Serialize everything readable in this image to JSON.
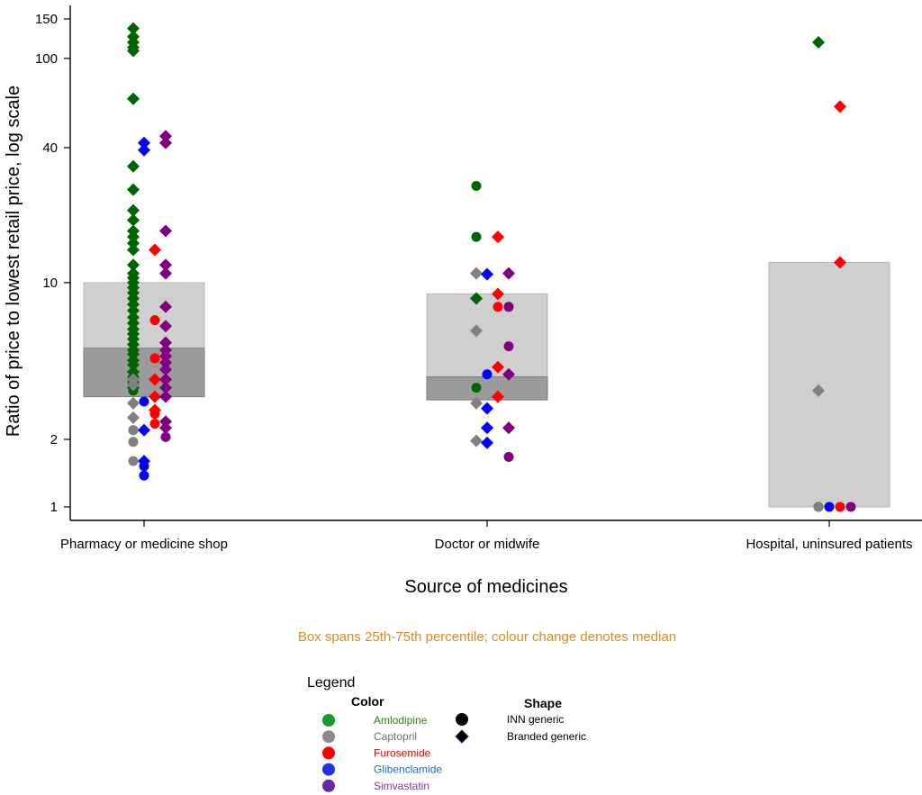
{
  "chart_data": {
    "type": "scatter",
    "subtype": "jittered strip plot with interquartile boxes",
    "y_scale": "log",
    "ylabel": "Ratio of price to lowest retail price, log scale",
    "xlabel": "Source of medicines",
    "yticks": [
      1,
      2,
      10,
      40,
      100,
      150
    ],
    "ylim": [
      0.86,
      200
    ],
    "note": "Box spans 25th-75th percentile; colour change denotes median",
    "categories": [
      "Pharmacy or medicine shop",
      "Doctor or midwife",
      "Hospital, uninsured patients"
    ],
    "boxes": [
      {
        "category": "Pharmacy or medicine shop",
        "q1": 3.1,
        "median": 5.1,
        "q3": 10.0
      },
      {
        "category": "Doctor or midwife",
        "q1": 3.0,
        "median": 3.8,
        "q3": 8.9
      },
      {
        "category": "Hospital, uninsured patients",
        "q1": 1.0,
        "median": 1.0,
        "q3": 12.3
      }
    ],
    "legend": {
      "title": "Legend",
      "color_heading": "Color",
      "shape_heading": "Shape",
      "colors": [
        {
          "name": "Amlodipine",
          "marker": "#119933",
          "text": "#3a7a1a"
        },
        {
          "name": "Captopril",
          "marker": "#8a8a8a",
          "text": "#707070"
        },
        {
          "name": "Furosemide",
          "marker": "#ff0000",
          "text": "#e00000"
        },
        {
          "name": "Glibenclamide",
          "marker": "#2233dd",
          "text": "#1a6ec8"
        },
        {
          "name": "Simvastatin",
          "marker": "#6a2a9a",
          "text": "#7a3aaa"
        }
      ],
      "shapes": [
        {
          "name": "INN generic",
          "shape": "circle"
        },
        {
          "name": "Branded generic",
          "shape": "diamond"
        }
      ]
    },
    "series": [
      {
        "name": "Amlodipine",
        "color": "#006400",
        "points": [
          {
            "x": "Pharmacy or medicine shop",
            "jitter": -0.02,
            "y": 136,
            "shape": "diamond"
          },
          {
            "x": "Pharmacy or medicine shop",
            "jitter": -0.02,
            "y": 125,
            "shape": "diamond"
          },
          {
            "x": "Pharmacy or medicine shop",
            "jitter": -0.02,
            "y": 118,
            "shape": "diamond"
          },
          {
            "x": "Pharmacy or medicine shop",
            "jitter": -0.02,
            "y": 112,
            "shape": "diamond"
          },
          {
            "x": "Pharmacy or medicine shop",
            "jitter": -0.02,
            "y": 108,
            "shape": "diamond"
          },
          {
            "x": "Pharmacy or medicine shop",
            "jitter": -0.02,
            "y": 66,
            "shape": "diamond"
          },
          {
            "x": "Pharmacy or medicine shop",
            "jitter": -0.02,
            "y": 33,
            "shape": "diamond"
          },
          {
            "x": "Pharmacy or medicine shop",
            "jitter": -0.02,
            "y": 26,
            "shape": "diamond"
          },
          {
            "x": "Pharmacy or medicine shop",
            "jitter": -0.02,
            "y": 21,
            "shape": "diamond"
          },
          {
            "x": "Pharmacy or medicine shop",
            "jitter": -0.02,
            "y": 19,
            "shape": "diamond"
          },
          {
            "x": "Pharmacy or medicine shop",
            "jitter": -0.02,
            "y": 17,
            "shape": "diamond"
          },
          {
            "x": "Pharmacy or medicine shop",
            "jitter": -0.02,
            "y": 16,
            "shape": "diamond"
          },
          {
            "x": "Pharmacy or medicine shop",
            "jitter": -0.02,
            "y": 15,
            "shape": "diamond"
          },
          {
            "x": "Pharmacy or medicine shop",
            "jitter": -0.02,
            "y": 14,
            "shape": "diamond"
          },
          {
            "x": "Pharmacy or medicine shop",
            "jitter": -0.02,
            "y": 12,
            "shape": "diamond"
          },
          {
            "x": "Pharmacy or medicine shop",
            "jitter": -0.02,
            "y": 11,
            "shape": "diamond"
          },
          {
            "x": "Pharmacy or medicine shop",
            "jitter": -0.02,
            "y": 10.5,
            "shape": "diamond"
          },
          {
            "x": "Pharmacy or medicine shop",
            "jitter": -0.02,
            "y": 10,
            "shape": "diamond"
          },
          {
            "x": "Pharmacy or medicine shop",
            "jitter": -0.02,
            "y": 9.5,
            "shape": "diamond"
          },
          {
            "x": "Pharmacy or medicine shop",
            "jitter": -0.02,
            "y": 9,
            "shape": "diamond"
          },
          {
            "x": "Pharmacy or medicine shop",
            "jitter": -0.02,
            "y": 8.5,
            "shape": "diamond"
          },
          {
            "x": "Pharmacy or medicine shop",
            "jitter": -0.02,
            "y": 8,
            "shape": "diamond"
          },
          {
            "x": "Pharmacy or medicine shop",
            "jitter": -0.02,
            "y": 7.5,
            "shape": "diamond"
          },
          {
            "x": "Pharmacy or medicine shop",
            "jitter": -0.02,
            "y": 7,
            "shape": "diamond"
          },
          {
            "x": "Pharmacy or medicine shop",
            "jitter": -0.02,
            "y": 6.6,
            "shape": "diamond"
          },
          {
            "x": "Pharmacy or medicine shop",
            "jitter": -0.02,
            "y": 6.2,
            "shape": "diamond"
          },
          {
            "x": "Pharmacy or medicine shop",
            "jitter": -0.02,
            "y": 5.9,
            "shape": "diamond"
          },
          {
            "x": "Pharmacy or medicine shop",
            "jitter": -0.02,
            "y": 5.6,
            "shape": "diamond"
          },
          {
            "x": "Pharmacy or medicine shop",
            "jitter": -0.02,
            "y": 5.3,
            "shape": "diamond"
          },
          {
            "x": "Pharmacy or medicine shop",
            "jitter": -0.02,
            "y": 5.0,
            "shape": "diamond"
          },
          {
            "x": "Pharmacy or medicine shop",
            "jitter": -0.02,
            "y": 4.8,
            "shape": "diamond"
          },
          {
            "x": "Pharmacy or medicine shop",
            "jitter": -0.02,
            "y": 4.5,
            "shape": "diamond"
          },
          {
            "x": "Pharmacy or medicine shop",
            "jitter": -0.02,
            "y": 4.3,
            "shape": "diamond"
          },
          {
            "x": "Pharmacy or medicine shop",
            "jitter": -0.02,
            "y": 4.0,
            "shape": "diamond"
          },
          {
            "x": "Pharmacy or medicine shop",
            "jitter": -0.02,
            "y": 3.8,
            "shape": "diamond"
          },
          {
            "x": "Pharmacy or medicine shop",
            "jitter": -0.02,
            "y": 3.6,
            "shape": "diamond"
          },
          {
            "x": "Pharmacy or medicine shop",
            "jitter": -0.02,
            "y": 3.4,
            "shape": "diamond"
          },
          {
            "x": "Pharmacy or medicine shop",
            "jitter": -0.02,
            "y": 3.3,
            "shape": "circle"
          },
          {
            "x": "Pharmacy or medicine shop",
            "jitter": -0.02,
            "y": 2.2,
            "shape": "circle"
          },
          {
            "x": "Doctor or midwife",
            "jitter": -0.02,
            "y": 27,
            "shape": "circle"
          },
          {
            "x": "Doctor or midwife",
            "jitter": -0.02,
            "y": 16,
            "shape": "circle"
          },
          {
            "x": "Doctor or midwife",
            "jitter": -0.02,
            "y": 8.5,
            "shape": "diamond"
          },
          {
            "x": "Doctor or midwife",
            "jitter": -0.02,
            "y": 3.4,
            "shape": "circle"
          },
          {
            "x": "Hospital, uninsured patients",
            "jitter": -0.02,
            "y": 118,
            "shape": "diamond"
          },
          {
            "x": "Hospital, uninsured patients",
            "jitter": -0.02,
            "y": 1.0,
            "shape": "circle"
          }
        ]
      },
      {
        "name": "Captopril",
        "color": "#808080",
        "points": [
          {
            "x": "Pharmacy or medicine shop",
            "jitter": -0.02,
            "y": 3.7,
            "shape": "diamond"
          },
          {
            "x": "Pharmacy or medicine shop",
            "jitter": -0.02,
            "y": 3.5,
            "shape": "diamond"
          },
          {
            "x": "Pharmacy or medicine shop",
            "jitter": -0.02,
            "y": 2.9,
            "shape": "diamond"
          },
          {
            "x": "Pharmacy or medicine shop",
            "jitter": -0.02,
            "y": 2.5,
            "shape": "diamond"
          },
          {
            "x": "Pharmacy or medicine shop",
            "jitter": -0.02,
            "y": 2.2,
            "shape": "circle"
          },
          {
            "x": "Pharmacy or medicine shop",
            "jitter": -0.02,
            "y": 1.95,
            "shape": "circle"
          },
          {
            "x": "Pharmacy or medicine shop",
            "jitter": -0.02,
            "y": 1.6,
            "shape": "circle"
          },
          {
            "x": "Doctor or midwife",
            "jitter": -0.02,
            "y": 11,
            "shape": "diamond"
          },
          {
            "x": "Doctor or midwife",
            "jitter": -0.02,
            "y": 6.1,
            "shape": "diamond"
          },
          {
            "x": "Doctor or midwife",
            "jitter": -0.02,
            "y": 2.9,
            "shape": "diamond"
          },
          {
            "x": "Doctor or midwife",
            "jitter": -0.02,
            "y": 1.97,
            "shape": "diamond"
          },
          {
            "x": "Hospital, uninsured patients",
            "jitter": -0.02,
            "y": 3.3,
            "shape": "diamond"
          },
          {
            "x": "Hospital, uninsured patients",
            "jitter": -0.02,
            "y": 1.0,
            "shape": "circle"
          }
        ]
      },
      {
        "name": "Furosemide",
        "color": "#ff0000",
        "points": [
          {
            "x": "Pharmacy or medicine shop",
            "jitter": 0.02,
            "y": 14,
            "shape": "diamond"
          },
          {
            "x": "Pharmacy or medicine shop",
            "jitter": 0.02,
            "y": 6.8,
            "shape": "circle"
          },
          {
            "x": "Pharmacy or medicine shop",
            "jitter": 0.02,
            "y": 4.6,
            "shape": "circle"
          },
          {
            "x": "Pharmacy or medicine shop",
            "jitter": 0.02,
            "y": 3.7,
            "shape": "diamond"
          },
          {
            "x": "Pharmacy or medicine shop",
            "jitter": 0.02,
            "y": 3.1,
            "shape": "diamond"
          },
          {
            "x": "Pharmacy or medicine shop",
            "jitter": 0.02,
            "y": 2.7,
            "shape": "diamond"
          },
          {
            "x": "Pharmacy or medicine shop",
            "jitter": 0.02,
            "y": 2.6,
            "shape": "circle"
          },
          {
            "x": "Pharmacy or medicine shop",
            "jitter": 0.02,
            "y": 2.35,
            "shape": "circle"
          },
          {
            "x": "Doctor or midwife",
            "jitter": 0.02,
            "y": 16,
            "shape": "diamond"
          },
          {
            "x": "Doctor or midwife",
            "jitter": 0.02,
            "y": 8.9,
            "shape": "diamond"
          },
          {
            "x": "Doctor or midwife",
            "jitter": 0.02,
            "y": 7.8,
            "shape": "circle"
          },
          {
            "x": "Doctor or midwife",
            "jitter": 0.02,
            "y": 4.2,
            "shape": "diamond"
          },
          {
            "x": "Doctor or midwife",
            "jitter": 0.02,
            "y": 3.1,
            "shape": "diamond"
          },
          {
            "x": "Hospital, uninsured patients",
            "jitter": 0.02,
            "y": 61,
            "shape": "diamond"
          },
          {
            "x": "Hospital, uninsured patients",
            "jitter": 0.02,
            "y": 12.3,
            "shape": "diamond"
          },
          {
            "x": "Hospital, uninsured patients",
            "jitter": 0.02,
            "y": 1.0,
            "shape": "circle"
          }
        ]
      },
      {
        "name": "Glibenclamide",
        "color": "#0000ff",
        "points": [
          {
            "x": "Pharmacy or medicine shop",
            "jitter": 0.0,
            "y": 42,
            "shape": "diamond"
          },
          {
            "x": "Pharmacy or medicine shop",
            "jitter": 0.0,
            "y": 39,
            "shape": "diamond"
          },
          {
            "x": "Pharmacy or medicine shop",
            "jitter": 0.0,
            "y": 2.95,
            "shape": "circle"
          },
          {
            "x": "Pharmacy or medicine shop",
            "jitter": 0.0,
            "y": 2.2,
            "shape": "diamond"
          },
          {
            "x": "Pharmacy or medicine shop",
            "jitter": 0.0,
            "y": 1.6,
            "shape": "diamond"
          },
          {
            "x": "Pharmacy or medicine shop",
            "jitter": 0.0,
            "y": 1.52,
            "shape": "circle"
          },
          {
            "x": "Pharmacy or medicine shop",
            "jitter": 0.0,
            "y": 1.38,
            "shape": "circle"
          },
          {
            "x": "Doctor or midwife",
            "jitter": 0.0,
            "y": 10.9,
            "shape": "diamond"
          },
          {
            "x": "Doctor or midwife",
            "jitter": 0.0,
            "y": 3.9,
            "shape": "circle"
          },
          {
            "x": "Doctor or midwife",
            "jitter": 0.0,
            "y": 2.75,
            "shape": "diamond"
          },
          {
            "x": "Doctor or midwife",
            "jitter": 0.0,
            "y": 2.25,
            "shape": "diamond"
          },
          {
            "x": "Doctor or midwife",
            "jitter": 0.0,
            "y": 1.93,
            "shape": "diamond"
          },
          {
            "x": "Hospital, uninsured patients",
            "jitter": 0.0,
            "y": 1.0,
            "shape": "circle"
          }
        ]
      },
      {
        "name": "Simvastatin",
        "color": "#800080",
        "points": [
          {
            "x": "Pharmacy or medicine shop",
            "jitter": 0.04,
            "y": 45,
            "shape": "diamond"
          },
          {
            "x": "Pharmacy or medicine shop",
            "jitter": 0.04,
            "y": 42,
            "shape": "diamond"
          },
          {
            "x": "Pharmacy or medicine shop",
            "jitter": 0.04,
            "y": 17,
            "shape": "diamond"
          },
          {
            "x": "Pharmacy or medicine shop",
            "jitter": 0.04,
            "y": 12,
            "shape": "diamond"
          },
          {
            "x": "Pharmacy or medicine shop",
            "jitter": 0.04,
            "y": 11,
            "shape": "diamond"
          },
          {
            "x": "Pharmacy or medicine shop",
            "jitter": 0.04,
            "y": 7.8,
            "shape": "diamond"
          },
          {
            "x": "Pharmacy or medicine shop",
            "jitter": 0.04,
            "y": 6.4,
            "shape": "diamond"
          },
          {
            "x": "Pharmacy or medicine shop",
            "jitter": 0.04,
            "y": 5.4,
            "shape": "diamond"
          },
          {
            "x": "Pharmacy or medicine shop",
            "jitter": 0.04,
            "y": 5.0,
            "shape": "diamond"
          },
          {
            "x": "Pharmacy or medicine shop",
            "jitter": 0.04,
            "y": 4.7,
            "shape": "diamond"
          },
          {
            "x": "Pharmacy or medicine shop",
            "jitter": 0.04,
            "y": 4.4,
            "shape": "diamond"
          },
          {
            "x": "Pharmacy or medicine shop",
            "jitter": 0.04,
            "y": 4.1,
            "shape": "diamond"
          },
          {
            "x": "Pharmacy or medicine shop",
            "jitter": 0.04,
            "y": 3.7,
            "shape": "diamond"
          },
          {
            "x": "Pharmacy or medicine shop",
            "jitter": 0.04,
            "y": 3.4,
            "shape": "diamond"
          },
          {
            "x": "Pharmacy or medicine shop",
            "jitter": 0.04,
            "y": 3.1,
            "shape": "diamond"
          },
          {
            "x": "Pharmacy or medicine shop",
            "jitter": 0.04,
            "y": 2.4,
            "shape": "diamond"
          },
          {
            "x": "Pharmacy or medicine shop",
            "jitter": 0.04,
            "y": 2.25,
            "shape": "diamond"
          },
          {
            "x": "Pharmacy or medicine shop",
            "jitter": 0.04,
            "y": 2.05,
            "shape": "circle"
          },
          {
            "x": "Doctor or midwife",
            "jitter": 0.04,
            "y": 11,
            "shape": "diamond"
          },
          {
            "x": "Doctor or midwife",
            "jitter": 0.04,
            "y": 7.8,
            "shape": "circle"
          },
          {
            "x": "Doctor or midwife",
            "jitter": 0.04,
            "y": 5.2,
            "shape": "circle"
          },
          {
            "x": "Doctor or midwife",
            "jitter": 0.04,
            "y": 3.9,
            "shape": "diamond"
          },
          {
            "x": "Doctor or midwife",
            "jitter": 0.04,
            "y": 2.25,
            "shape": "diamond"
          },
          {
            "x": "Doctor or midwife",
            "jitter": 0.04,
            "y": 1.67,
            "shape": "circle"
          },
          {
            "x": "Hospital, uninsured patients",
            "jitter": 0.04,
            "y": 1.0,
            "shape": "circle"
          }
        ]
      }
    ]
  }
}
